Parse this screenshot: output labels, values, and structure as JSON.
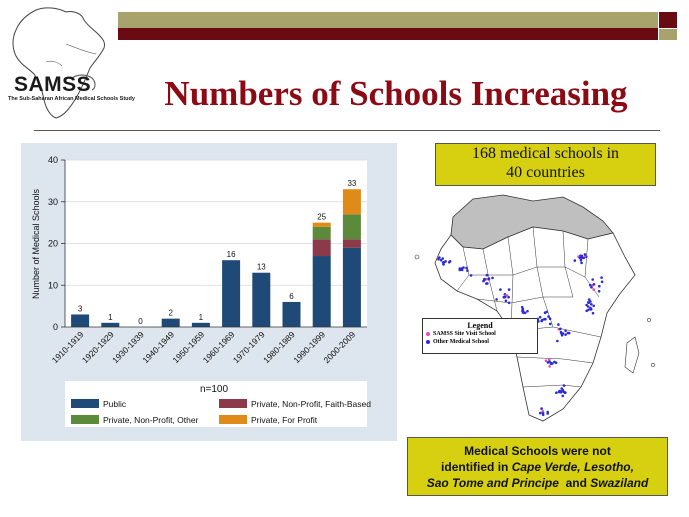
{
  "logo": {
    "name": "SAMSS",
    "subtitle": "The Sub-Saharan African Medical Schools Study"
  },
  "title": "Numbers of Schools Increasing",
  "callout": {
    "line1": "168 medical schools in",
    "line2": "40 countries"
  },
  "map_legend": {
    "title": "Legend",
    "items": [
      {
        "label": "SAMSS Site Visit School",
        "color": "#e24db8"
      },
      {
        "label": "Other Medical School",
        "color": "#2a2ad6"
      }
    ]
  },
  "note": {
    "line1": "Medical Schools were not",
    "line2_prefix": "identified in ",
    "line2_em": "Cape Verde, Lesotho,",
    "line3_em1": "Sao Tome and Principe",
    "line3_mid": "  and ",
    "line3_em2": "Swaziland"
  },
  "chart_data": {
    "type": "bar",
    "stacked": true,
    "categories": [
      "1910-1919",
      "1920-1929",
      "1930-1939",
      "1940-1949",
      "1950-1959",
      "1960-1969",
      "1970-1979",
      "1980-1989",
      "1990-1999",
      "2000-2009"
    ],
    "totals": [
      3,
      1,
      0,
      2,
      1,
      16,
      13,
      6,
      25,
      33
    ],
    "series": [
      {
        "name": "Public",
        "color": "#1f4a78",
        "values": [
          3,
          1,
          0,
          2,
          1,
          16,
          13,
          6,
          17,
          19
        ]
      },
      {
        "name": "Private, Non-Profit, Faith-Based",
        "color": "#8c3a4a",
        "values": [
          0,
          0,
          0,
          0,
          0,
          0,
          0,
          0,
          4,
          2
        ]
      },
      {
        "name": "Private, Non-Profit, Other",
        "color": "#5a8a3a",
        "values": [
          0,
          0,
          0,
          0,
          0,
          0,
          0,
          0,
          3,
          6
        ]
      },
      {
        "name": "Private, For Profit",
        "color": "#e08a1a",
        "values": [
          0,
          0,
          0,
          0,
          0,
          0,
          0,
          0,
          1,
          6
        ]
      }
    ],
    "ylabel": "Number of Medical Schools",
    "xlabel": "",
    "ylim": [
      0,
      40
    ],
    "yticks": [
      0,
      10,
      20,
      30,
      40
    ],
    "n_label": "n=100",
    "legend_order": [
      0,
      1,
      2,
      3
    ]
  }
}
